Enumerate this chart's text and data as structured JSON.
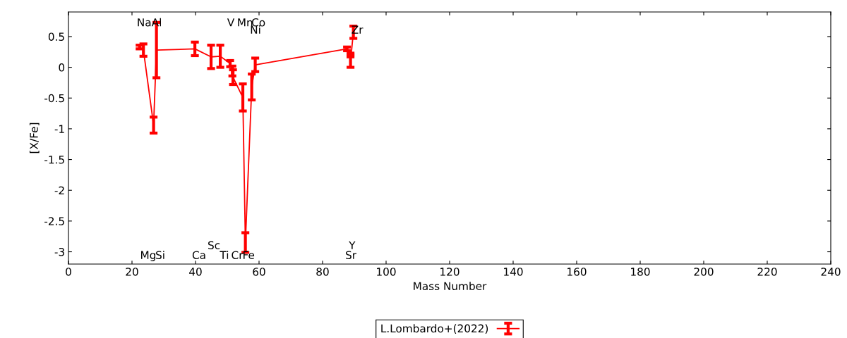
{
  "chart_data": {
    "type": "line",
    "xlabel": "Mass Number",
    "ylabel": "[X/Fe]",
    "xlim": [
      0,
      240
    ],
    "xticks": [
      0,
      20,
      40,
      60,
      80,
      100,
      120,
      140,
      160,
      180,
      200,
      220,
      240
    ],
    "ylim": [
      -3.2,
      0.9
    ],
    "yticks": [
      {
        "value": -3,
        "label": "-3"
      },
      {
        "value": -2.5,
        "label": "-2.5"
      },
      {
        "value": -2,
        "label": "-2"
      },
      {
        "value": -1.5,
        "label": "-1.5"
      },
      {
        "value": -1,
        "label": "-1"
      },
      {
        "value": -0.5,
        "label": "-0.5"
      },
      0,
      0.5
    ],
    "grid": false,
    "legend": "bottom",
    "marker": "none",
    "line_style": "solid",
    "series": [
      {
        "name": "L.Lombardo+(2022)",
        "color": "#ff0000",
        "x": [
          22.4,
          23.6,
          26.8,
          27.7,
          39.8,
          44.9,
          47.8,
          50.9,
          51.6,
          51.8,
          54.9,
          55.7,
          57.7,
          58.8,
          87.7,
          88.8,
          88.8,
          89.7
        ],
        "values": [
          0.33,
          0.28,
          -0.94,
          0.28,
          0.3,
          0.17,
          0.18,
          0.06,
          -0.06,
          -0.16,
          -0.49,
          -2.85,
          -0.32,
          0.04,
          0.3,
          0.2,
          0.1,
          0.57
        ],
        "errors": [
          0.03,
          0.1,
          0.13,
          0.45,
          0.11,
          0.19,
          0.18,
          0.05,
          0.08,
          0.12,
          0.22,
          0.16,
          0.21,
          0.11,
          0.03,
          0.03,
          0.1,
          0.1
        ]
      }
    ],
    "annotations": [
      "Na",
      "Al",
      "V",
      "Mn",
      "Co",
      "Ni",
      "Zr",
      "Mg",
      "Si",
      "Ca",
      "Sc",
      "Ti",
      "Cr",
      "Fe",
      "Y",
      "Sr"
    ]
  }
}
